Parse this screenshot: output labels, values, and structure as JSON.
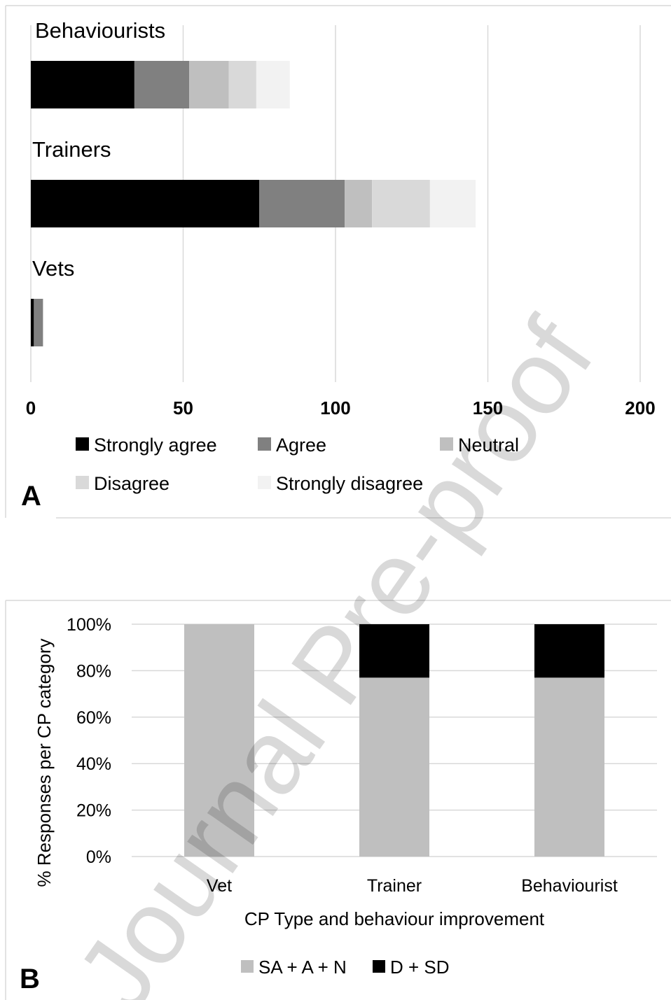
{
  "chart_data": [
    {
      "panel": "A",
      "type": "bar",
      "orientation": "horizontal",
      "stacked": true,
      "categories": [
        "Behaviourists",
        "Trainers",
        "Vets"
      ],
      "series": [
        {
          "name": "Strongly agree",
          "values": [
            34,
            75,
            1
          ],
          "color": "#000000"
        },
        {
          "name": "Agree",
          "values": [
            18,
            28,
            3
          ],
          "color": "#808080"
        },
        {
          "name": "Neutral",
          "values": [
            13,
            9,
            0
          ],
          "color": "#bfbfbf"
        },
        {
          "name": "Disagree",
          "values": [
            9,
            19,
            0
          ],
          "color": "#d9d9d9"
        },
        {
          "name": "Strongly disagree",
          "values": [
            11,
            15,
            0
          ],
          "color": "#f2f2f2"
        }
      ],
      "xticks": [
        "0",
        "50",
        "100",
        "150",
        "200"
      ],
      "xlim": [
        0,
        200
      ],
      "grid": true,
      "legend": "bottom"
    },
    {
      "panel": "B",
      "type": "bar",
      "stacked": true,
      "categories": [
        "Vet",
        "Trainer",
        "Behaviourist"
      ],
      "series": [
        {
          "name": "SA + A + N",
          "values": [
            100,
            77,
            77
          ],
          "color": "#bfbfbf"
        },
        {
          "name": "D + SD",
          "values": [
            0,
            23,
            23
          ],
          "color": "#000000"
        }
      ],
      "yticks": [
        "0%",
        "20%",
        "40%",
        "60%",
        "80%",
        "100%"
      ],
      "ylim": [
        0,
        100
      ],
      "ylabel": "% Responses per CP category",
      "xlabel": "CP Type and behaviour improvement",
      "grid": true,
      "legend": "bottom"
    }
  ],
  "panel_labels": {
    "a": "A",
    "b": "B"
  },
  "watermark": "Journal Pre-proof"
}
